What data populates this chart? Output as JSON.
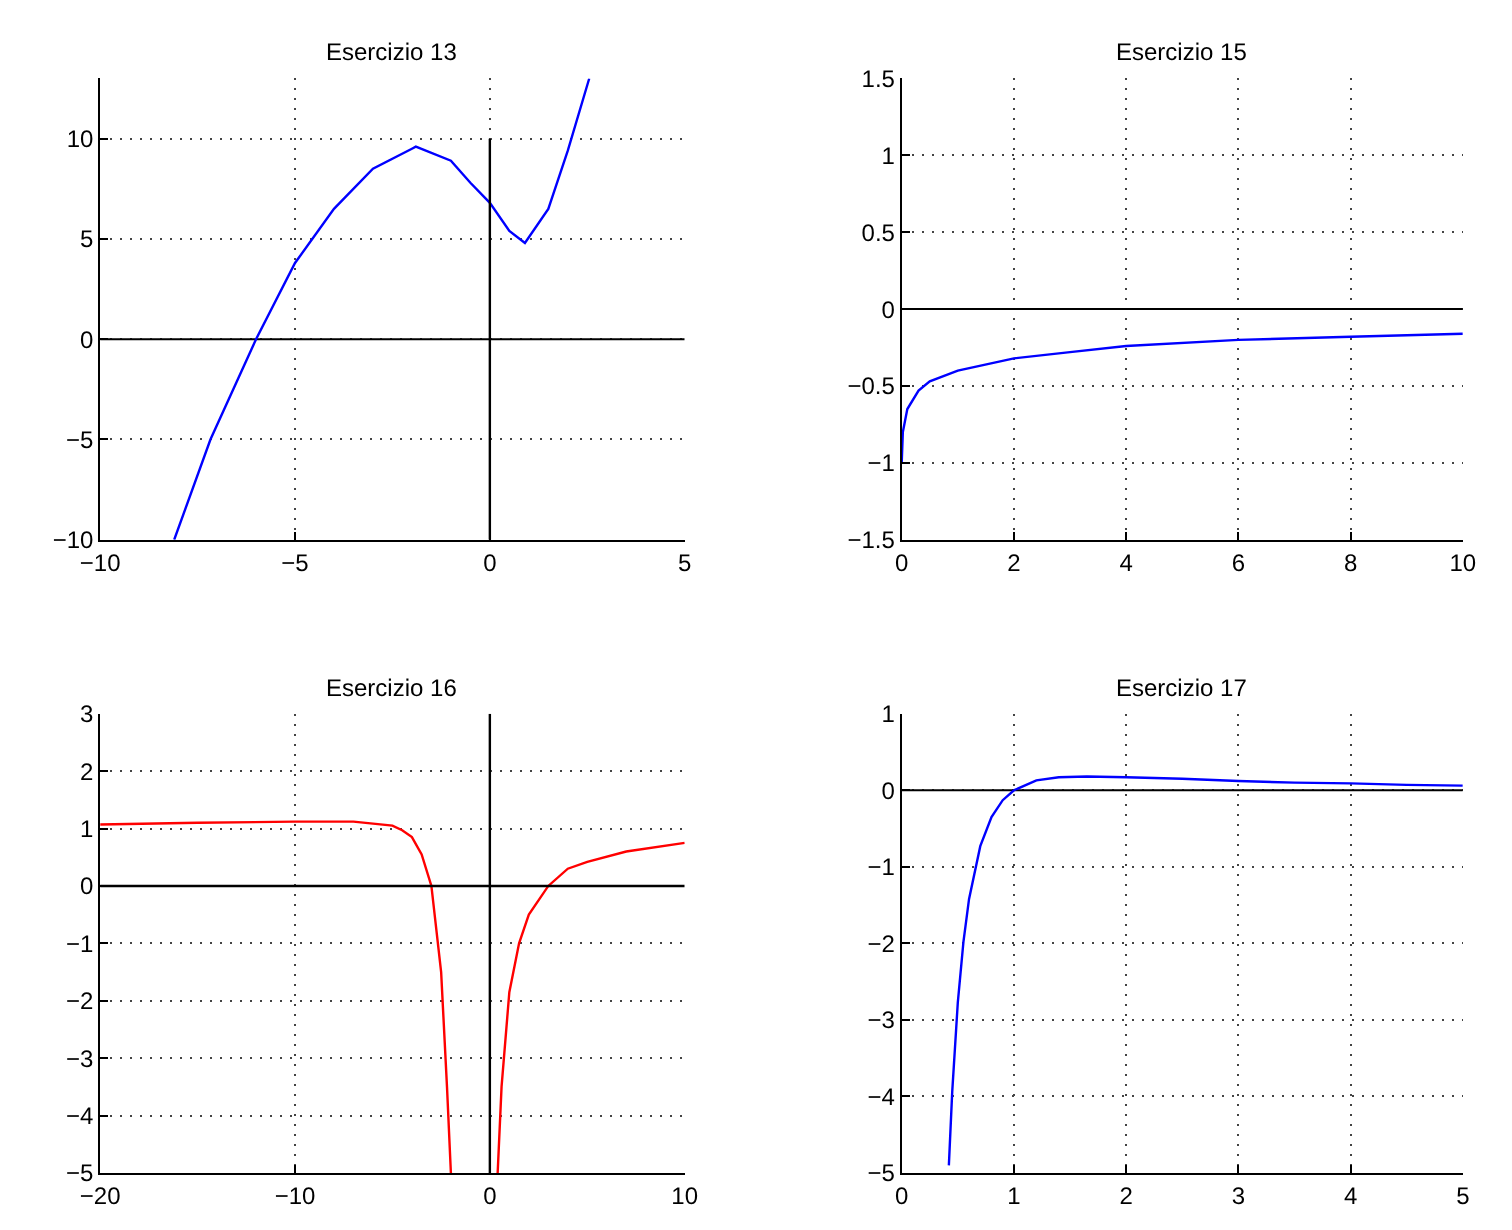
{
  "chart_data": [
    {
      "type": "line",
      "title": "Esercizio 13",
      "xlim": [
        -10,
        5
      ],
      "ylim": [
        -10,
        13
      ],
      "xticks": [
        -10,
        -5,
        0,
        5
      ],
      "yticks": [
        -10,
        -5,
        0,
        5,
        10
      ],
      "grid": true,
      "series": [
        {
          "color": "#0000ff",
          "x": [
            -8.1,
            -7.17,
            -6,
            -5,
            -4,
            -3,
            -2,
            -1.9,
            -1,
            -0.5,
            0,
            0.5,
            0.9,
            1.5,
            2,
            2.55
          ],
          "values": [
            -10,
            -5,
            0,
            3.8,
            6.5,
            8.5,
            9.5,
            9.6,
            8.9,
            7.8,
            6.8,
            5.4,
            4.8,
            6.5,
            9.4,
            13
          ]
        },
        {
          "color": "#000000",
          "x": [
            0,
            0
          ],
          "values": [
            -10,
            10
          ]
        }
      ],
      "ref_lines": [
        {
          "axis": "y",
          "value": 0,
          "color": "#000000"
        }
      ]
    },
    {
      "type": "line",
      "title": "Esercizio 15",
      "xlim": [
        0,
        10
      ],
      "ylim": [
        -1.5,
        1.5
      ],
      "xticks": [
        0,
        2,
        4,
        6,
        8,
        10
      ],
      "yticks": [
        -1.5,
        -1,
        -0.5,
        0,
        0.5,
        1,
        1.5
      ],
      "grid": true,
      "series": [
        {
          "color": "#0000ff",
          "x": [
            0,
            0.02,
            0.1,
            0.3,
            0.5,
            1,
            2,
            3,
            4,
            6,
            8,
            10
          ],
          "values": [
            -1,
            -0.8,
            -0.65,
            -0.53,
            -0.47,
            -0.4,
            -0.32,
            -0.28,
            -0.24,
            -0.2,
            -0.18,
            -0.16
          ]
        }
      ],
      "ref_lines": [
        {
          "axis": "y",
          "value": 0,
          "color": "#000000"
        }
      ]
    },
    {
      "type": "line",
      "title": "Esercizio 16",
      "xlim": [
        -20,
        10
      ],
      "ylim": [
        -5,
        3
      ],
      "xticks": [
        -20,
        -10,
        0,
        10
      ],
      "yticks": [
        -5,
        -4,
        -3,
        -2,
        -1,
        0,
        1,
        2,
        3
      ],
      "grid": true,
      "series": [
        {
          "color": "#ff0000",
          "x": [
            -20,
            -15,
            -10,
            -7,
            -5,
            -4.5,
            -4,
            -3.5,
            -3,
            -2.5,
            -2.2,
            -2,
            null,
            0.4,
            0.6,
            1,
            1.5,
            2,
            3,
            4,
            5,
            7,
            10
          ],
          "values": [
            1.07,
            1.1,
            1.12,
            1.12,
            1.05,
            0.97,
            0.85,
            0.55,
            0,
            -1.5,
            -3.5,
            -5,
            null,
            -5,
            -3.5,
            -1.85,
            -1,
            -0.5,
            0,
            0.3,
            0.42,
            0.6,
            0.75
          ]
        },
        {
          "color": "#000000",
          "x": [
            -20,
            10
          ],
          "values": [
            0,
            0
          ]
        },
        {
          "color": "#000000",
          "x": [
            0,
            0
          ],
          "values": [
            -5,
            3
          ]
        }
      ]
    },
    {
      "type": "line",
      "title": "Esercizio 17",
      "xlim": [
        0,
        5
      ],
      "ylim": [
        -5,
        1
      ],
      "xticks": [
        0,
        1,
        2,
        3,
        4,
        5
      ],
      "yticks": [
        -5,
        -4,
        -3,
        -2,
        -1,
        0,
        1
      ],
      "grid": true,
      "series": [
        {
          "color": "#0000ff",
          "x": [
            0.42,
            0.45,
            0.5,
            0.55,
            0.6,
            0.7,
            0.8,
            0.9,
            1,
            1.2,
            1.4,
            1.65,
            2,
            2.5,
            3,
            3.5,
            4,
            4.5,
            5
          ],
          "values": [
            -4.9,
            -3.94,
            -2.77,
            -1.98,
            -1.42,
            -0.73,
            -0.35,
            -0.13,
            0,
            0.13,
            0.17,
            0.18,
            0.17,
            0.15,
            0.12,
            0.1,
            0.09,
            0.07,
            0.06
          ]
        }
      ],
      "ref_lines": [
        {
          "axis": "y",
          "value": 0,
          "color": "#000000"
        }
      ]
    }
  ]
}
